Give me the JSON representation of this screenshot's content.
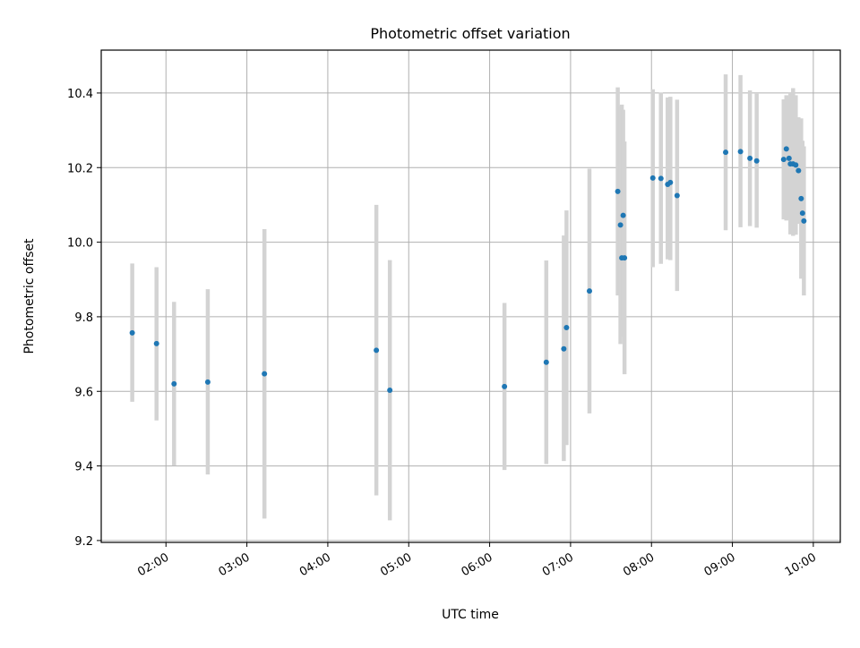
{
  "chart_data": {
    "type": "scatter",
    "title": "Photometric offset variation",
    "xlabel": "UTC time",
    "ylabel": "Photometric offset",
    "x_unit": "UTC time (HH:MM)",
    "xlim": [
      "01:12",
      "10:20"
    ],
    "ylim": [
      9.195,
      10.515
    ],
    "grid": true,
    "legend": "none",
    "colors": {
      "point": "#1f77b4",
      "errorbar": "#d3d3d3",
      "grid": "#b0b0b0",
      "axes": "#000000"
    },
    "x_ticks": [
      "02:00",
      "03:00",
      "04:00",
      "05:00",
      "06:00",
      "07:00",
      "08:00",
      "09:00",
      "10:00"
    ],
    "y_ticks": [
      9.2,
      9.4,
      9.6,
      9.8,
      10.0,
      10.2,
      10.4
    ],
    "y_tick_labels": [
      "9.2",
      "9.4",
      "9.6",
      "9.8",
      "10.0",
      "10.2",
      "10.4"
    ],
    "series": [
      {
        "points": [
          {
            "x": "01:35",
            "y": 9.757,
            "ymin": 9.572,
            "ymax": 9.943
          },
          {
            "x": "01:53",
            "y": 9.728,
            "ymin": 9.522,
            "ymax": 9.933
          },
          {
            "x": "02:06",
            "y": 9.62,
            "ymin": 9.401,
            "ymax": 9.84
          },
          {
            "x": "02:31",
            "y": 9.625,
            "ymin": 9.377,
            "ymax": 9.874
          },
          {
            "x": "03:13",
            "y": 9.647,
            "ymin": 9.259,
            "ymax": 10.035
          },
          {
            "x": "04:36",
            "y": 9.71,
            "ymin": 9.321,
            "ymax": 10.1
          },
          {
            "x": "04:46",
            "y": 9.603,
            "ymin": 9.254,
            "ymax": 9.952
          },
          {
            "x": "06:11",
            "y": 9.613,
            "ymin": 9.389,
            "ymax": 9.837
          },
          {
            "x": "06:42",
            "y": 9.678,
            "ymin": 9.405,
            "ymax": 9.951
          },
          {
            "x": "06:55",
            "y": 9.714,
            "ymin": 9.413,
            "ymax": 10.018
          },
          {
            "x": "06:57",
            "y": 9.771,
            "ymin": 9.456,
            "ymax": 10.085
          },
          {
            "x": "07:14",
            "y": 9.869,
            "ymin": 9.541,
            "ymax": 10.197
          },
          {
            "x": "07:35",
            "y": 10.136,
            "ymin": 9.857,
            "ymax": 10.415
          },
          {
            "x": "07:37",
            "y": 10.046,
            "ymin": 9.727,
            "ymax": 10.365
          },
          {
            "x": "07:38",
            "y": 9.958,
            "ymin": 9.747,
            "ymax": 10.369
          },
          {
            "x": "07:39",
            "y": 10.072,
            "ymin": 9.789,
            "ymax": 10.355
          },
          {
            "x": "07:40",
            "y": 9.958,
            "ymin": 9.646,
            "ymax": 10.27
          },
          {
            "x": "08:01",
            "y": 10.172,
            "ymin": 9.933,
            "ymax": 10.41
          },
          {
            "x": "08:07",
            "y": 10.171,
            "ymin": 9.942,
            "ymax": 10.401
          },
          {
            "x": "08:12",
            "y": 10.155,
            "ymin": 9.954,
            "ymax": 10.388
          },
          {
            "x": "08:14",
            "y": 10.16,
            "ymin": 9.952,
            "ymax": 10.39
          },
          {
            "x": "08:19",
            "y": 10.125,
            "ymin": 9.869,
            "ymax": 10.382
          },
          {
            "x": "08:55",
            "y": 10.241,
            "ymin": 10.032,
            "ymax": 10.45
          },
          {
            "x": "09:06",
            "y": 10.243,
            "ymin": 10.04,
            "ymax": 10.448
          },
          {
            "x": "09:13",
            "y": 10.225,
            "ymin": 10.043,
            "ymax": 10.407
          },
          {
            "x": "09:18",
            "y": 10.218,
            "ymin": 10.039,
            "ymax": 10.398
          },
          {
            "x": "09:38",
            "y": 10.222,
            "ymin": 10.061,
            "ymax": 10.383
          },
          {
            "x": "09:40",
            "y": 10.25,
            "ymin": 10.058,
            "ymax": 10.394
          },
          {
            "x": "09:42",
            "y": 10.225,
            "ymin": 10.065,
            "ymax": 10.384
          },
          {
            "x": "09:43",
            "y": 10.21,
            "ymin": 10.021,
            "ymax": 10.4
          },
          {
            "x": "09:45",
            "y": 10.21,
            "ymin": 10.017,
            "ymax": 10.413
          },
          {
            "x": "09:47",
            "y": 10.207,
            "ymin": 10.02,
            "ymax": 10.394
          },
          {
            "x": "09:49",
            "y": 10.192,
            "ymin": 10.049,
            "ymax": 10.335
          },
          {
            "x": "09:51",
            "y": 10.117,
            "ymin": 9.902,
            "ymax": 10.332
          },
          {
            "x": "09:52",
            "y": 10.078,
            "ymin": 9.912,
            "ymax": 10.272
          },
          {
            "x": "09:53",
            "y": 10.057,
            "ymin": 9.857,
            "ymax": 10.257
          }
        ]
      }
    ]
  }
}
